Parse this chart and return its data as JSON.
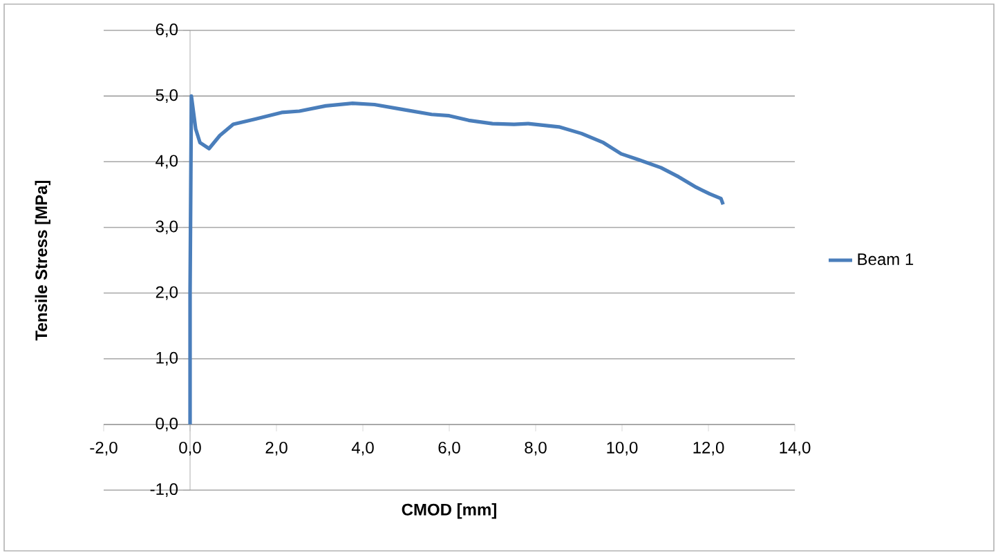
{
  "chart_data": {
    "type": "line",
    "xlabel": "CMOD [mm]",
    "ylabel": "Tensile Stress [MPa]",
    "x": [
      0,
      0,
      0.03,
      0.13,
      0.23,
      0.44,
      0.69,
      1.0,
      1.51,
      2.12,
      2.53,
      3.14,
      3.76,
      4.27,
      4.88,
      5.59,
      6.0,
      6.45,
      7.0,
      7.5,
      7.83,
      8.54,
      9.06,
      9.57,
      9.98,
      10.39,
      10.9,
      11.31,
      11.72,
      12.03,
      12.29,
      12.34
    ],
    "series": [
      {
        "name": "Beam 1",
        "color": "#4a7ebb",
        "values": [
          0,
          2.0,
          5.0,
          4.5,
          4.29,
          4.2,
          4.4,
          4.57,
          4.65,
          4.75,
          4.77,
          4.85,
          4.89,
          4.87,
          4.8,
          4.72,
          4.7,
          4.63,
          4.58,
          4.57,
          4.58,
          4.53,
          4.43,
          4.29,
          4.12,
          4.03,
          3.91,
          3.77,
          3.61,
          3.51,
          3.44,
          3.35
        ]
      }
    ],
    "xlim": [
      -2,
      14
    ],
    "ylim": [
      -1,
      6
    ],
    "xticks": [
      {
        "value": -2,
        "label": "-2,0"
      },
      {
        "value": 0,
        "label": "0,0"
      },
      {
        "value": 2,
        "label": "2,0"
      },
      {
        "value": 4,
        "label": "4,0"
      },
      {
        "value": 6,
        "label": "6,0"
      },
      {
        "value": 8,
        "label": "8,0"
      },
      {
        "value": 10,
        "label": "10,0"
      },
      {
        "value": 12,
        "label": "12,0"
      },
      {
        "value": 14,
        "label": "14,0"
      }
    ],
    "yticks": [
      {
        "value": -1,
        "label": "-1,0"
      },
      {
        "value": 0,
        "label": "0,0"
      },
      {
        "value": 1,
        "label": "1,0"
      },
      {
        "value": 2,
        "label": "2,0"
      },
      {
        "value": 3,
        "label": "3,0"
      },
      {
        "value": 4,
        "label": "4,0"
      },
      {
        "value": 5,
        "label": "5,0"
      },
      {
        "value": 6,
        "label": "6,0"
      }
    ],
    "grid": "y",
    "legend": "right"
  }
}
